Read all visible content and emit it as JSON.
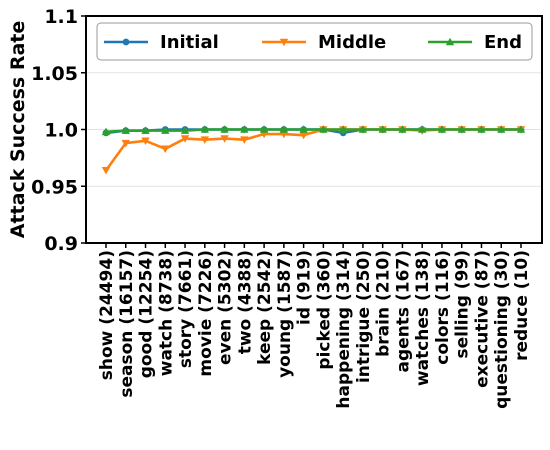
{
  "chart_data": {
    "type": "line",
    "title": "",
    "xlabel": "",
    "ylabel": "Attack Success Rate",
    "ylim": [
      0.9,
      1.1
    ],
    "yticks": [
      "0.9",
      "0.95",
      "1.0",
      "1.05",
      "1.1"
    ],
    "grid": "horizontal",
    "legend_placement": "top, inside, 3 columns",
    "categories": [
      "show (24494)",
      "season (16157)",
      "good (12254)",
      "watch (8738)",
      "story (7661)",
      "movie (7226)",
      "even (5302)",
      "two (4388)",
      "keep (2542)",
      "young (1587)",
      "id (919)",
      "picked (360)",
      "happening (314)",
      "intrigue (250)",
      "brain (210)",
      "agents (167)",
      "watches (138)",
      "colors (116)",
      "selling (99)",
      "executive (87)",
      "questioning (30)",
      "reduce (10)"
    ],
    "series": [
      {
        "name": "Initial",
        "color": "#1f77b4",
        "marker": "circle",
        "values": [
          0.997,
          0.999,
          0.999,
          1.0,
          1.0,
          1.0,
          1.0,
          1.0,
          1.0,
          1.0,
          1.0,
          1.0,
          0.997,
          1.0,
          1.0,
          1.0,
          1.0,
          1.0,
          1.0,
          1.0,
          1.0,
          1.0
        ]
      },
      {
        "name": "Middle",
        "color": "#ff7f0e",
        "marker": "triangle-down",
        "values": [
          0.964,
          0.988,
          0.99,
          0.983,
          0.992,
          0.991,
          0.992,
          0.991,
          0.996,
          0.996,
          0.995,
          1.0,
          1.0,
          1.0,
          1.0,
          1.0,
          0.999,
          1.0,
          1.0,
          1.0,
          1.0,
          1.0
        ]
      },
      {
        "name": "End",
        "color": "#2ca02c",
        "marker": "triangle-up",
        "values": [
          0.998,
          0.999,
          0.999,
          0.999,
          0.999,
          1.0,
          1.0,
          1.0,
          1.0,
          1.0,
          1.0,
          1.0,
          1.0,
          1.0,
          1.0,
          1.0,
          1.0,
          1.0,
          1.0,
          1.0,
          1.0,
          1.0
        ]
      }
    ]
  }
}
